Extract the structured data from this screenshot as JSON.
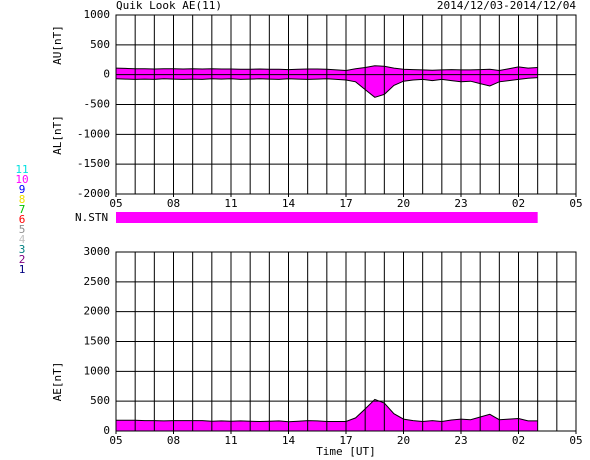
{
  "title": "Quik Look AE(11)",
  "date_range": "2014/12/03-2014/12/04",
  "x_label": "Time [UT]",
  "station_legend": [
    {
      "label": "11",
      "color": "#00e0e0"
    },
    {
      "label": "10",
      "color": "#ff00ff"
    },
    {
      "label": "9",
      "color": "#0000ff"
    },
    {
      "label": "8",
      "color": "#f0e000"
    },
    {
      "label": "7",
      "color": "#00c000"
    },
    {
      "label": "6",
      "color": "#ff0000"
    },
    {
      "label": "5",
      "color": "#909090"
    },
    {
      "label": "4",
      "color": "#c0c0c0"
    },
    {
      "label": "3",
      "color": "#008080"
    },
    {
      "label": "2",
      "color": "#800080"
    },
    {
      "label": "1",
      "color": "#000080"
    }
  ],
  "n_stn": {
    "label": "N.STN",
    "color": "#ff00ff"
  },
  "chart_data": [
    {
      "type": "area",
      "y_labels": [
        "AU[nT]",
        "AL[nT]"
      ],
      "x": [
        5,
        5.5,
        6,
        6.5,
        7,
        7.5,
        8,
        8.5,
        9,
        9.5,
        10,
        10.5,
        11,
        11.5,
        12,
        12.5,
        13,
        13.5,
        14,
        14.5,
        15,
        15.5,
        16,
        16.5,
        17,
        17.5,
        18,
        18.5,
        19,
        19.5,
        20,
        20.5,
        21,
        21.5,
        22,
        22.5,
        23,
        23.5,
        24,
        24.5,
        25,
        25.5,
        26,
        26.5,
        27
      ],
      "series": [
        {
          "color": "#ff00ff",
          "values": [
            110,
            105,
            100,
            100,
            95,
            100,
            100,
            95,
            100,
            95,
            100,
            95,
            95,
            90,
            90,
            95,
            90,
            90,
            85,
            90,
            95,
            95,
            90,
            80,
            70,
            100,
            120,
            150,
            140,
            110,
            90,
            85,
            80,
            75,
            80,
            85,
            80,
            80,
            85,
            90,
            70,
            100,
            130,
            110,
            120
          ]
        },
        {
          "color": "#ff00ff",
          "values": [
            -70,
            -75,
            -80,
            -75,
            -80,
            -70,
            -75,
            -80,
            -75,
            -80,
            -70,
            -75,
            -70,
            -80,
            -75,
            -70,
            -75,
            -80,
            -70,
            -75,
            -80,
            -75,
            -70,
            -80,
            -90,
            -120,
            -250,
            -380,
            -330,
            -180,
            -110,
            -90,
            -80,
            -100,
            -80,
            -100,
            -120,
            -110,
            -150,
            -190,
            -120,
            -100,
            -80,
            -60,
            -50
          ]
        }
      ],
      "xlim": [
        5,
        29
      ],
      "xticks": [
        {
          "value": 5,
          "label": "05"
        },
        {
          "value": 8,
          "label": "08"
        },
        11,
        14,
        17,
        20,
        23,
        {
          "value": 26,
          "label": "02"
        },
        {
          "value": 29,
          "label": "05"
        }
      ],
      "xgrid": [
        5,
        6,
        7,
        8,
        9,
        10,
        11,
        12,
        13,
        14,
        15,
        16,
        17,
        18,
        19,
        20,
        21,
        22,
        23,
        24,
        25,
        26,
        27,
        28,
        29
      ],
      "ylim": [
        -2000,
        1000
      ],
      "yticks": [
        1000,
        500,
        0,
        -500,
        -1000,
        -1500,
        -2000
      ],
      "grid": true
    },
    {
      "type": "area",
      "y_labels": [
        "AE[nT]"
      ],
      "x": [
        5,
        5.5,
        6,
        6.5,
        7,
        7.5,
        8,
        8.5,
        9,
        9.5,
        10,
        10.5,
        11,
        11.5,
        12,
        12.5,
        13,
        13.5,
        14,
        14.5,
        15,
        15.5,
        16,
        16.5,
        17,
        17.5,
        18,
        18.5,
        19,
        19.5,
        20,
        20.5,
        21,
        21.5,
        22,
        22.5,
        23,
        23.5,
        24,
        24.5,
        25,
        25.5,
        26,
        26.5,
        27
      ],
      "series": [
        {
          "color": "#ff00ff",
          "values": [
            180,
            180,
            180,
            175,
            175,
            170,
            175,
            175,
            175,
            175,
            165,
            170,
            165,
            170,
            165,
            160,
            165,
            170,
            155,
            165,
            175,
            170,
            160,
            160,
            160,
            220,
            370,
            530,
            470,
            290,
            200,
            175,
            160,
            175,
            160,
            185,
            200,
            190,
            235,
            280,
            190,
            200,
            210,
            170,
            170
          ]
        }
      ],
      "xlim": [
        5,
        29
      ],
      "xticks": [
        {
          "value": 5,
          "label": "05"
        },
        {
          "value": 8,
          "label": "08"
        },
        11,
        14,
        17,
        20,
        23,
        {
          "value": 26,
          "label": "02"
        },
        {
          "value": 29,
          "label": "05"
        }
      ],
      "xgrid": [
        5,
        6,
        7,
        8,
        9,
        10,
        11,
        12,
        13,
        14,
        15,
        16,
        17,
        18,
        19,
        20,
        21,
        22,
        23,
        24,
        25,
        26,
        27,
        28,
        29
      ],
      "ylim": [
        0,
        3000
      ],
      "yticks": [
        0,
        500,
        1000,
        1500,
        2000,
        2500,
        3000
      ],
      "grid": true
    }
  ]
}
